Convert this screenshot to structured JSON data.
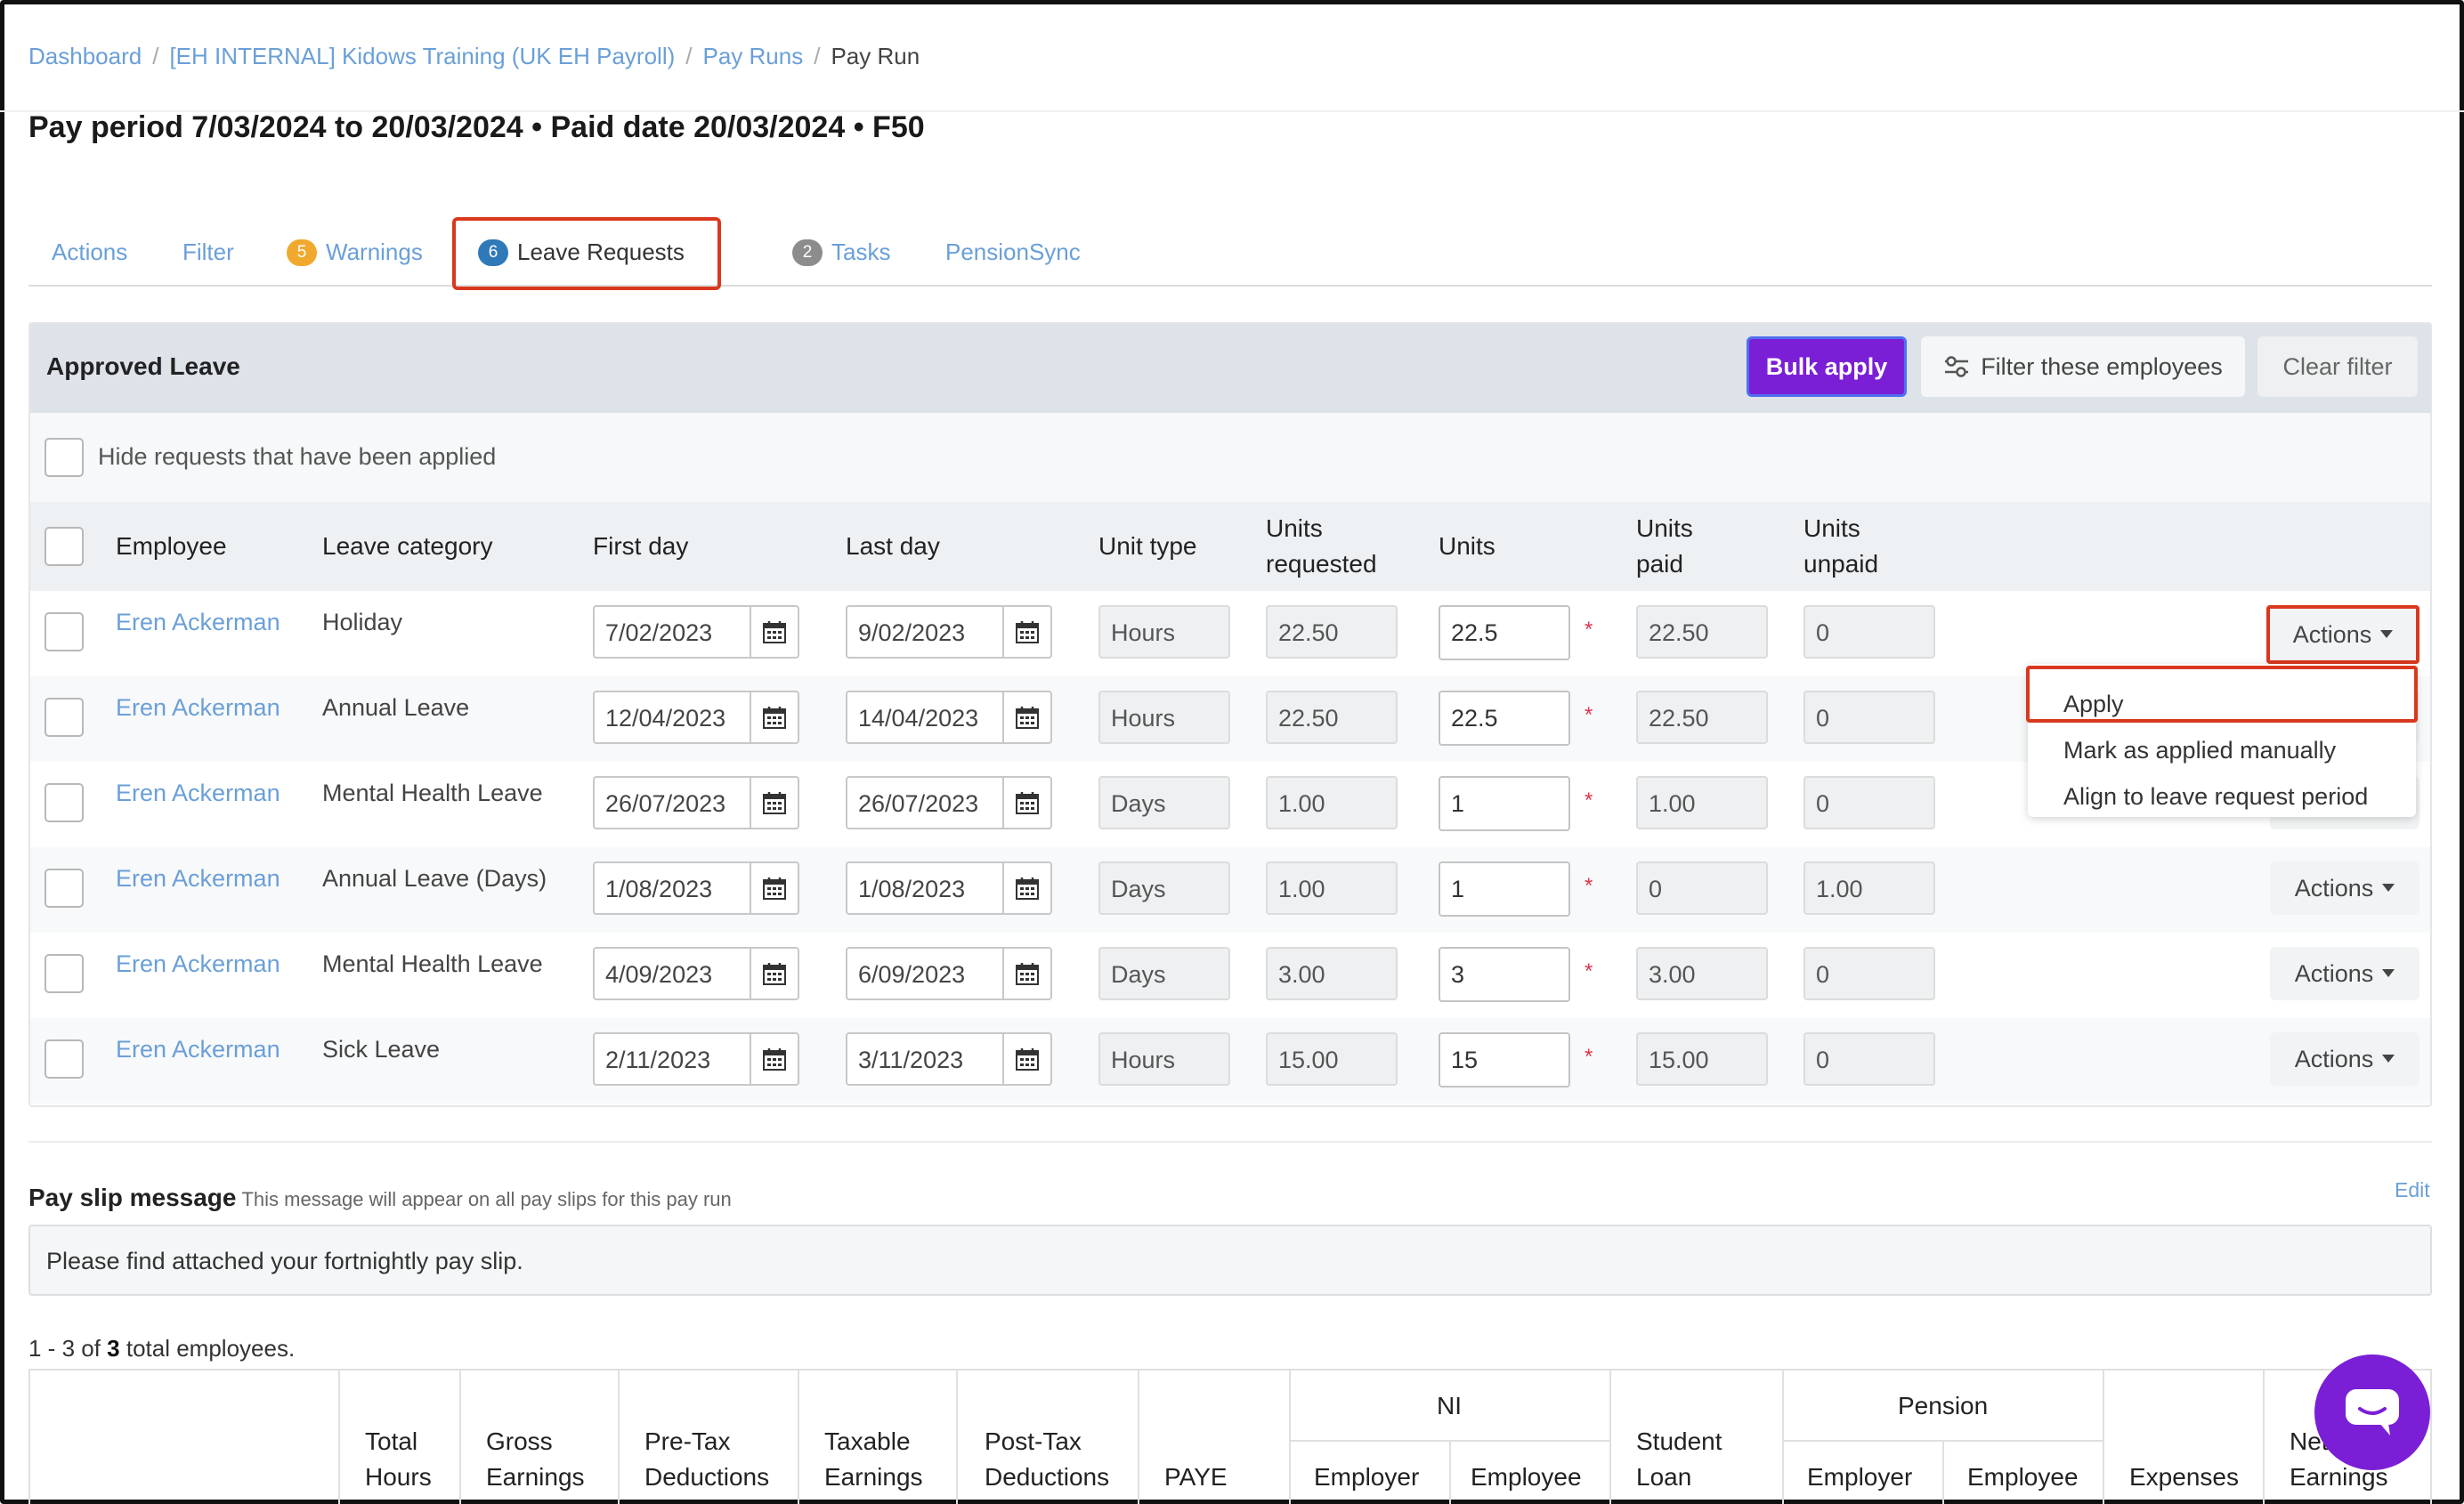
{
  "breadcrumb": {
    "dashboard": "Dashboard",
    "business": "[EH INTERNAL] Kidows Training (UK EH Payroll)",
    "pay_runs": "Pay Runs",
    "current": "Pay Run"
  },
  "page_title": "Pay period 7/03/2024 to 20/03/2024 • Paid date 20/03/2024 • F50",
  "tabs": {
    "actions": "Actions",
    "filter": "Filter",
    "warnings_count": "5",
    "warnings": "Warnings",
    "leave_count": "6",
    "leave": "Leave Requests",
    "tasks_count": "2",
    "tasks": "Tasks",
    "pensionsync": "PensionSync"
  },
  "panel": {
    "title": "Approved Leave",
    "bulk_apply": "Bulk apply",
    "filter_employees": "Filter these employees",
    "clear_filter": "Clear filter",
    "hide_applied": "Hide requests that have been applied"
  },
  "columns": {
    "employee": "Employee",
    "leave_category": "Leave category",
    "first_day": "First day",
    "last_day": "Last day",
    "unit_type": "Unit type",
    "units_requested_1": "Units",
    "units_requested_2": "requested",
    "units": "Units",
    "units_paid_1": "Units",
    "units_paid_2": "paid",
    "units_unpaid_1": "Units",
    "units_unpaid_2": "unpaid"
  },
  "rows": [
    {
      "employee": "Eren Ackerman",
      "category": "Holiday",
      "first": "7/02/2023",
      "last": "9/02/2023",
      "unit_type": "Hours",
      "requested": "22.50",
      "units": "22.5",
      "paid": "22.50",
      "unpaid": "0",
      "actions": "Actions"
    },
    {
      "employee": "Eren Ackerman",
      "category": "Annual Leave",
      "first": "12/04/2023",
      "last": "14/04/2023",
      "unit_type": "Hours",
      "requested": "22.50",
      "units": "22.5",
      "paid": "22.50",
      "unpaid": "0",
      "actions": "Actions"
    },
    {
      "employee": "Eren Ackerman",
      "category": "Mental Health Leave",
      "first": "26/07/2023",
      "last": "26/07/2023",
      "unit_type": "Days",
      "requested": "1.00",
      "units": "1",
      "paid": "1.00",
      "unpaid": "0",
      "actions": "Actions"
    },
    {
      "employee": "Eren Ackerman",
      "category": "Annual Leave (Days)",
      "first": "1/08/2023",
      "last": "1/08/2023",
      "unit_type": "Days",
      "requested": "1.00",
      "units": "1",
      "paid": "0",
      "unpaid": "1.00",
      "actions": "Actions"
    },
    {
      "employee": "Eren Ackerman",
      "category": "Mental Health Leave",
      "first": "4/09/2023",
      "last": "6/09/2023",
      "unit_type": "Days",
      "requested": "3.00",
      "units": "3",
      "paid": "3.00",
      "unpaid": "0",
      "actions": "Actions"
    },
    {
      "employee": "Eren Ackerman",
      "category": "Sick Leave",
      "first": "2/11/2023",
      "last": "3/11/2023",
      "unit_type": "Hours",
      "requested": "15.00",
      "units": "15",
      "paid": "15.00",
      "unpaid": "0",
      "actions": "Actions"
    }
  ],
  "required_mark": "*",
  "dropdown": {
    "apply": "Apply",
    "mark_manual": "Mark as applied manually",
    "align": "Align to leave request period"
  },
  "payslip": {
    "label": "Pay slip message",
    "hint": "This message will appear on all pay slips for this pay run",
    "edit": "Edit",
    "message": "Please find attached your fortnightly pay slip."
  },
  "summary": {
    "prefix": "1 - 3 of ",
    "total": "3",
    "suffix": " total employees."
  },
  "bottom_table": {
    "total_hours_1": "Total",
    "total_hours_2": "Hours",
    "gross_1": "Gross",
    "gross_2": "Earnings",
    "pretax_1": "Pre-Tax",
    "pretax_2": "Deductions",
    "taxable_1": "Taxable",
    "taxable_2": "Earnings",
    "posttax_1": "Post-Tax",
    "posttax_2": "Deductions",
    "paye": "PAYE",
    "ni": "NI",
    "ni_employer": "Employer",
    "ni_employee": "Employee",
    "student_1": "Student",
    "student_2": "Loan",
    "pension": "Pension",
    "pension_employer": "Employer",
    "pension_employee": "Employee",
    "expenses": "Expenses",
    "net_1": "Net",
    "net_2": "Earnings"
  },
  "colors": {
    "link": "#6a9fd8",
    "primary": "#7a1fd6",
    "highlight": "#d9381e",
    "warning_badge": "#f0a92e",
    "leave_badge": "#2f79b9",
    "tasks_badge": "#8c8c8c"
  }
}
